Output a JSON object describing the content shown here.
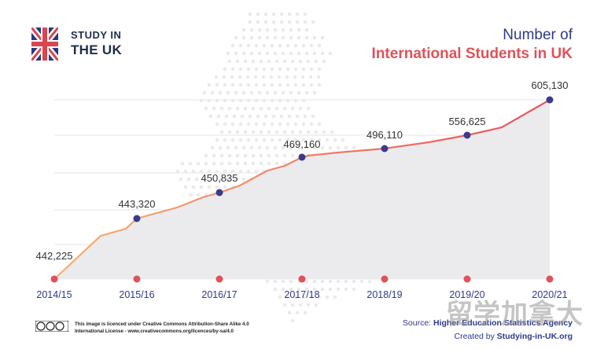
{
  "brand": {
    "line1": "STUDY IN",
    "line2": "THE UK"
  },
  "title": {
    "line1": "Number of",
    "line2": "International Students in UK"
  },
  "chart_data": {
    "type": "area",
    "title": "Number of International Students in UK",
    "categories": [
      "2014/15",
      "2015/16",
      "2016/17",
      "2017/18",
      "2018/19",
      "2019/20",
      "2020/21"
    ],
    "series": [
      {
        "values": [
          442225,
          443320,
          450835,
          469160,
          496110,
          556625,
          605130
        ]
      }
    ],
    "data_labels": [
      "442,225",
      "443,320",
      "450,835",
      "469,160",
      "496,110",
      "556,625",
      "605,130"
    ],
    "grid": true,
    "colors": {
      "line_start": "#f6a56a",
      "line_end": "#e8525a",
      "marker": "#3b3a8e",
      "axis_dot": "#e0525a",
      "area": "#ebebed",
      "tick_label": "#2e3a8c"
    }
  },
  "footer": {
    "license_line1": "This image is licenced under Creative Commons Attribution-Share Alike 4.0",
    "license_line2": "International License - www.creativecommons.org/licences/by-sa/4.0",
    "source_prefix": "Source: ",
    "source_name": "Higher Education Statistics Agency",
    "created_prefix": "Created by ",
    "created_name": "Studying-in-UK.org"
  },
  "watermark": "留学加拿大"
}
